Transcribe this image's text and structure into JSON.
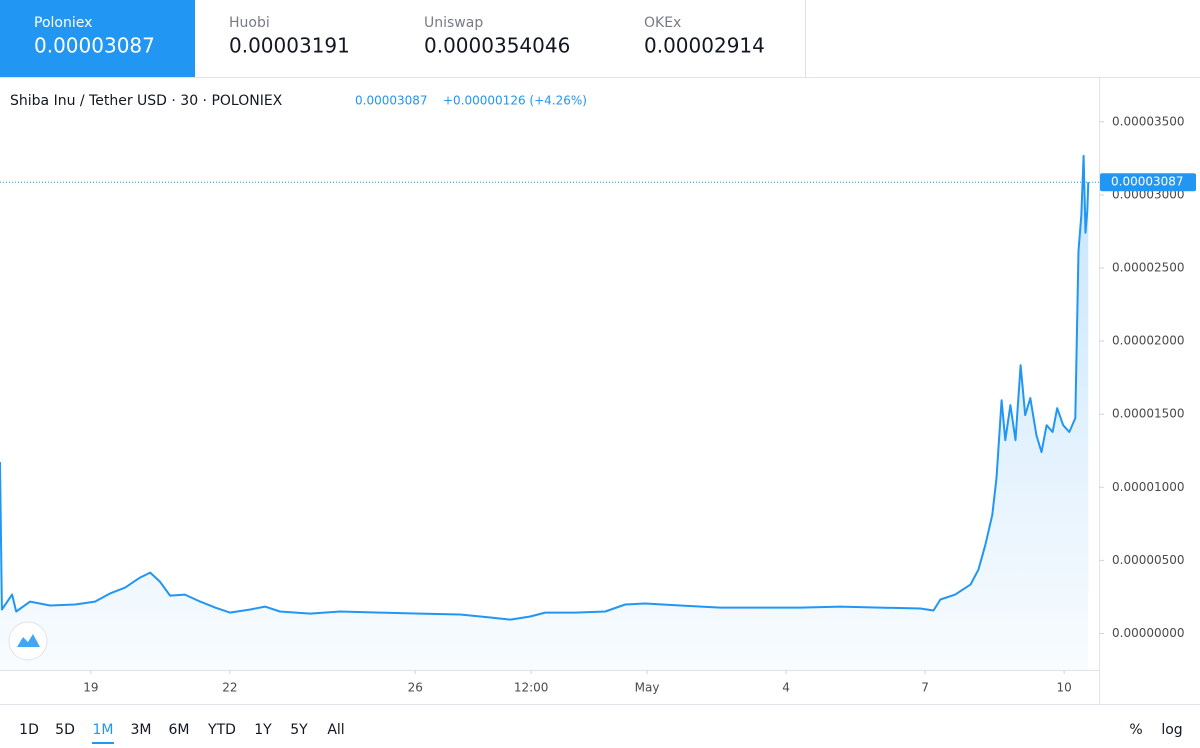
{
  "tabs": [
    {
      "name": "Poloniex",
      "price": "0.00003087",
      "active": true
    },
    {
      "name": "Huobi",
      "price": "0.00003191",
      "active": false
    },
    {
      "name": "Uniswap",
      "price": "0.0000354046",
      "active": false
    },
    {
      "name": "OKEx",
      "price": "0.00002914",
      "active": false
    }
  ],
  "chart_data": {
    "type": "area",
    "title": "Shiba Inu / Tether USD · 30 · POLONIEX",
    "quote": "0.00003087",
    "change": "+0.00000126 (+4.26%)",
    "last_label": "0.00003087",
    "color": "#2196f3",
    "grid": false,
    "x": [
      17.04,
      17.08,
      17.3,
      17.39,
      17.69,
      18.12,
      18.66,
      19.09,
      19.41,
      19.74,
      20.06,
      20.28,
      20.49,
      20.71,
      21.03,
      21.36,
      21.68,
      22.0,
      22.44,
      22.76,
      23.08,
      23.73,
      24.38,
      25.24,
      26.11,
      26.97,
      27.62,
      28.05,
      28.48,
      28.8,
      29.45,
      30.1,
      30.53,
      30.96,
      31.72,
      32.58,
      33.44,
      34.31,
      35.17,
      36.03,
      36.9,
      37.18,
      37.33,
      37.65,
      37.98,
      38.15,
      38.3,
      38.45,
      38.54,
      38.65,
      38.73,
      38.84,
      38.95,
      39.06,
      39.16,
      39.27,
      39.4,
      39.51,
      39.62,
      39.75,
      39.85,
      39.98,
      40.11,
      40.24,
      40.31,
      40.37,
      40.42,
      40.46,
      40.5,
      40.52
    ],
    "values": [
      1.173e-05,
      1.64e-06,
      2.66e-06,
      1.5e-06,
      2.18e-06,
      1.91e-06,
      1.98e-06,
      2.18e-06,
      2.73e-06,
      3.14e-06,
      3.82e-06,
      4.16e-06,
      3.55e-06,
      2.59e-06,
      2.66e-06,
      2.18e-06,
      1.77e-06,
      1.43e-06,
      1.64e-06,
      1.84e-06,
      1.5e-06,
      1.36e-06,
      1.5e-06,
      1.43e-06,
      1.36e-06,
      1.3e-06,
      1.09e-06,
      9.5e-07,
      1.16e-06,
      1.43e-06,
      1.43e-06,
      1.5e-06,
      1.98e-06,
      2.05e-06,
      1.91e-06,
      1.77e-06,
      1.77e-06,
      1.77e-06,
      1.84e-06,
      1.77e-06,
      1.71e-06,
      1.57e-06,
      2.32e-06,
      2.66e-06,
      3.34e-06,
      4.36e-06,
      6.07e-06,
      8.12e-06,
      1.064e-05,
      1.596e-05,
      1.323e-05,
      1.562e-05,
      1.323e-05,
      1.835e-05,
      1.494e-05,
      1.61e-05,
      1.357e-05,
      1.241e-05,
      1.425e-05,
      1.378e-05,
      1.541e-05,
      1.425e-05,
      1.378e-05,
      1.473e-05,
      2.619e-05,
      2.858e-05,
      3.267e-05,
      2.742e-05,
      2.892e-05,
      3.087e-05
    ],
    "xlim": [
      17.04,
      40.73
    ],
    "xticks": [
      19,
      22,
      26,
      {
        "value": 28.5,
        "label": "12:00"
      },
      {
        "value": 31,
        "label": "May"
      },
      {
        "value": 34,
        "label": "4"
      },
      {
        "value": 37,
        "label": "7"
      },
      {
        "value": 40,
        "label": "10"
      }
    ],
    "ylim": [
      -2.5e-06,
      3.8e-05
    ],
    "yticks": [
      {
        "value": 0,
        "label": "0.00000000"
      },
      {
        "value": 5e-06,
        "label": "0.00000500"
      },
      {
        "value": 1e-05,
        "label": "0.00001000"
      },
      {
        "value": 1.5e-05,
        "label": "0.00001500"
      },
      {
        "value": 2e-05,
        "label": "0.00002000"
      },
      {
        "value": 2.5e-05,
        "label": "0.00002500"
      },
      {
        "value": 3e-05,
        "label": "0.00003000"
      },
      {
        "value": 3.5e-05,
        "label": "0.00003500"
      }
    ]
  },
  "ranges": [
    {
      "label": "1D",
      "active": false
    },
    {
      "label": "5D",
      "active": false
    },
    {
      "label": "1M",
      "active": true
    },
    {
      "label": "3M",
      "active": false
    },
    {
      "label": "6M",
      "active": false
    },
    {
      "label": "YTD",
      "active": false
    },
    {
      "label": "1Y",
      "active": false
    },
    {
      "label": "5Y",
      "active": false
    },
    {
      "label": "All",
      "active": false
    }
  ],
  "scale_options": [
    "%",
    "log"
  ]
}
